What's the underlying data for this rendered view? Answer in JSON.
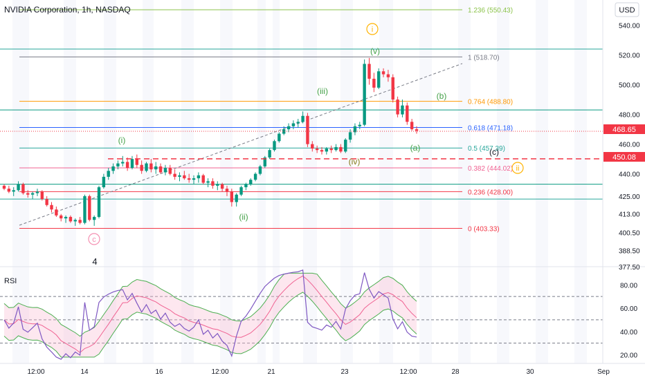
{
  "header": {
    "symbol": "NVIDIA Corporation, 1h, NASDAQ",
    "currency": "USD"
  },
  "colors": {
    "up": "#089981",
    "down": "#f23645",
    "fib_0": "#f23645",
    "fib_0236": "#f23645",
    "fib_0382": "#f06292",
    "fib_05": "#26a69a",
    "fib_0618": "#2962ff",
    "fib_0764": "#ff9800",
    "fib_1": "#787b86",
    "fib_1236": "#8bc34a",
    "wave_green": "#43a047",
    "wave_orange": "#ffb300",
    "wave_pink": "#f48fb1",
    "rsi_line": "#7e57c2",
    "rsi_ma": "#f06292",
    "rsi_band": "#4caf50",
    "price_badge": "#f23645"
  },
  "chart_data": {
    "type": "candlestick",
    "ylim": [
      377.5,
      557
    ],
    "y_ticks": [
      "540.00",
      "520.00",
      "500.00",
      "480.00",
      "460.00",
      "440.00",
      "425.00",
      "413.00",
      "400.50",
      "388.50",
      "377.50"
    ],
    "x_ticks": [
      "12:00",
      "14",
      "16",
      "12:00",
      "21",
      "23",
      "12:00",
      "28",
      "30",
      "Sep"
    ],
    "current_price": "468.65",
    "marked_price": "450.08",
    "fib_levels": [
      {
        "ratio": "1.236",
        "price": 550.43,
        "label": "1.236 (550.43)"
      },
      {
        "ratio": "1",
        "price": 518.7,
        "label": "1 (518.70)"
      },
      {
        "ratio": "0.764",
        "price": 488.8,
        "label": "0.764 (488.80)"
      },
      {
        "ratio": "0.618",
        "price": 471.18,
        "label": "0.618 (471.18)"
      },
      {
        "ratio": "0.5",
        "price": 457.39,
        "label": "0.5 (457.39)"
      },
      {
        "ratio": "0.382",
        "price": 444.02,
        "label": "0.382 (444.02)"
      },
      {
        "ratio": "0.236",
        "price": 428.0,
        "label": "0.236 (428.00)"
      },
      {
        "ratio": "0",
        "price": 403.33,
        "label": "0 (403.33)"
      }
    ],
    "horizontal_lines": [
      524,
      483,
      433,
      423
    ],
    "candles": [
      [
        432,
        433,
        429,
        430
      ],
      [
        430,
        432,
        427,
        428
      ],
      [
        428,
        431,
        425,
        429
      ],
      [
        429,
        435,
        428,
        433
      ],
      [
        433,
        434,
        426,
        427
      ],
      [
        427,
        429,
        424,
        426
      ],
      [
        426,
        428,
        423,
        427
      ],
      [
        427,
        430,
        425,
        428
      ],
      [
        428,
        429,
        422,
        423
      ],
      [
        423,
        425,
        418,
        419
      ],
      [
        419,
        421,
        414,
        416
      ],
      [
        416,
        418,
        411,
        412
      ],
      [
        412,
        413,
        408,
        410
      ],
      [
        410,
        412,
        407,
        411
      ],
      [
        411,
        412,
        407,
        408
      ],
      [
        408,
        410,
        405,
        409
      ],
      [
        409,
        411,
        406,
        407
      ],
      [
        407,
        426,
        406,
        425
      ],
      [
        425,
        426,
        408,
        409
      ],
      [
        409,
        412,
        405,
        411
      ],
      [
        411,
        432,
        410,
        431
      ],
      [
        431,
        440,
        430,
        438
      ],
      [
        438,
        444,
        436,
        442
      ],
      [
        442,
        447,
        440,
        445
      ],
      [
        445,
        449,
        443,
        447
      ],
      [
        447,
        452,
        445,
        448
      ],
      [
        448,
        451,
        442,
        444
      ],
      [
        444,
        452,
        443,
        450
      ],
      [
        450,
        453,
        444,
        446
      ],
      [
        446,
        449,
        440,
        442
      ],
      [
        442,
        448,
        441,
        447
      ],
      [
        447,
        450,
        441,
        443
      ],
      [
        443,
        448,
        440,
        445
      ],
      [
        445,
        447,
        440,
        441
      ],
      [
        441,
        446,
        439,
        444
      ],
      [
        444,
        446,
        439,
        440
      ],
      [
        440,
        443,
        436,
        438
      ],
      [
        438,
        441,
        435,
        439
      ],
      [
        439,
        442,
        436,
        437
      ],
      [
        437,
        440,
        434,
        436
      ],
      [
        436,
        439,
        433,
        437
      ],
      [
        437,
        441,
        434,
        439
      ],
      [
        439,
        440,
        433,
        434
      ],
      [
        434,
        437,
        431,
        435
      ],
      [
        435,
        437,
        430,
        432
      ],
      [
        432,
        435,
        429,
        433
      ],
      [
        433,
        434,
        428,
        430
      ],
      [
        430,
        432,
        425,
        428
      ],
      [
        428,
        430,
        418,
        421
      ],
      [
        421,
        427,
        418,
        426
      ],
      [
        426,
        432,
        425,
        431
      ],
      [
        431,
        434,
        429,
        433
      ],
      [
        433,
        437,
        432,
        436
      ],
      [
        436,
        441,
        435,
        440
      ],
      [
        440,
        446,
        439,
        445
      ],
      [
        445,
        452,
        444,
        451
      ],
      [
        451,
        457,
        450,
        456
      ],
      [
        456,
        463,
        455,
        462
      ],
      [
        462,
        468,
        461,
        467
      ],
      [
        467,
        472,
        466,
        470
      ],
      [
        470,
        474,
        468,
        472
      ],
      [
        472,
        476,
        470,
        474
      ],
      [
        474,
        477,
        471,
        475
      ],
      [
        475,
        482,
        474,
        479
      ],
      [
        479,
        481,
        458,
        460
      ],
      [
        460,
        462,
        455,
        457
      ],
      [
        457,
        459,
        454,
        456
      ],
      [
        456,
        458,
        453,
        455
      ],
      [
        455,
        458,
        453,
        457
      ],
      [
        457,
        459,
        454,
        456
      ],
      [
        456,
        460,
        455,
        458
      ],
      [
        458,
        460,
        454,
        455
      ],
      [
        455,
        464,
        454,
        463
      ],
      [
        463,
        470,
        461,
        468
      ],
      [
        468,
        474,
        466,
        472
      ],
      [
        472,
        475,
        470,
        473
      ],
      [
        473,
        517,
        472,
        514
      ],
      [
        514,
        518,
        500,
        504
      ],
      [
        504,
        508,
        495,
        498
      ],
      [
        498,
        511,
        497,
        509
      ],
      [
        509,
        511,
        505,
        507
      ],
      [
        507,
        510,
        502,
        505
      ],
      [
        505,
        507,
        488,
        490
      ],
      [
        490,
        492,
        478,
        480
      ],
      [
        480,
        490,
        478,
        486
      ],
      [
        486,
        488,
        473,
        475
      ],
      [
        475,
        477,
        469,
        470
      ],
      [
        470,
        472,
        467,
        469
      ]
    ],
    "rsi": {
      "label": "RSI",
      "ylim": [
        15,
        92
      ],
      "y_ticks": [
        "80.00",
        "60.00",
        "40.00",
        "20.00"
      ],
      "levels": [
        70,
        50,
        30
      ]
    },
    "wave_labels": [
      {
        "text": "i",
        "style": "circled",
        "color": "orange"
      },
      {
        "text": "ii",
        "style": "circled",
        "color": "orange"
      },
      {
        "text": "c",
        "style": "circled",
        "color": "pink"
      },
      {
        "text": "(i)",
        "color": "green"
      },
      {
        "text": "(ii)",
        "color": "green"
      },
      {
        "text": "(iii)",
        "color": "green"
      },
      {
        "text": "(iv)",
        "color": "olive"
      },
      {
        "text": "(v)",
        "color": "green"
      },
      {
        "text": "(a)",
        "color": "green"
      },
      {
        "text": "(b)",
        "color": "green"
      },
      {
        "text": "(c)",
        "color": "dark"
      },
      {
        "text": "4",
        "color": "dark"
      }
    ]
  }
}
